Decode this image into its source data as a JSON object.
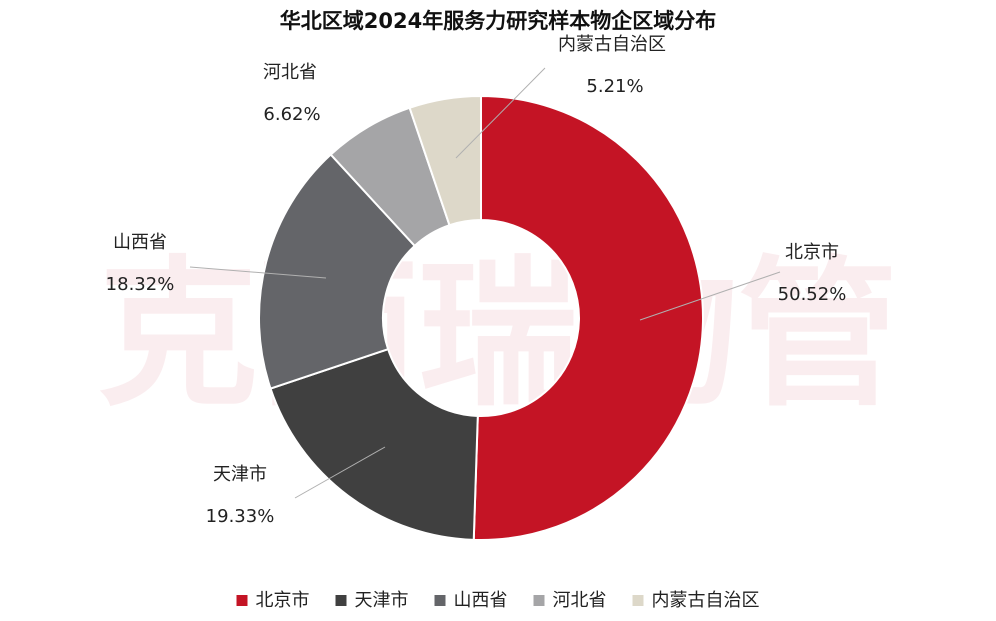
{
  "chart_data": {
    "type": "pie",
    "variant": "donut",
    "title": "华北区域2024年服务力研究样本物企区域分布",
    "slices": [
      {
        "name": "北京市",
        "value": 50.52,
        "label": "50.52%",
        "color": "#c41425"
      },
      {
        "name": "天津市",
        "value": 19.33,
        "label": "19.33%",
        "color": "#404040"
      },
      {
        "name": "山西省",
        "value": 18.32,
        "label": "18.32%",
        "color": "#646569"
      },
      {
        "name": "河北省",
        "value": 6.62,
        "label": "6.62%",
        "color": "#a5a5a7"
      },
      {
        "name": "内蒙古自治区",
        "value": 5.21,
        "label": "5.21%",
        "color": "#ddd8c9"
      }
    ],
    "legend": {
      "position": "bottom"
    },
    "watermark": "克而瑞物管"
  }
}
